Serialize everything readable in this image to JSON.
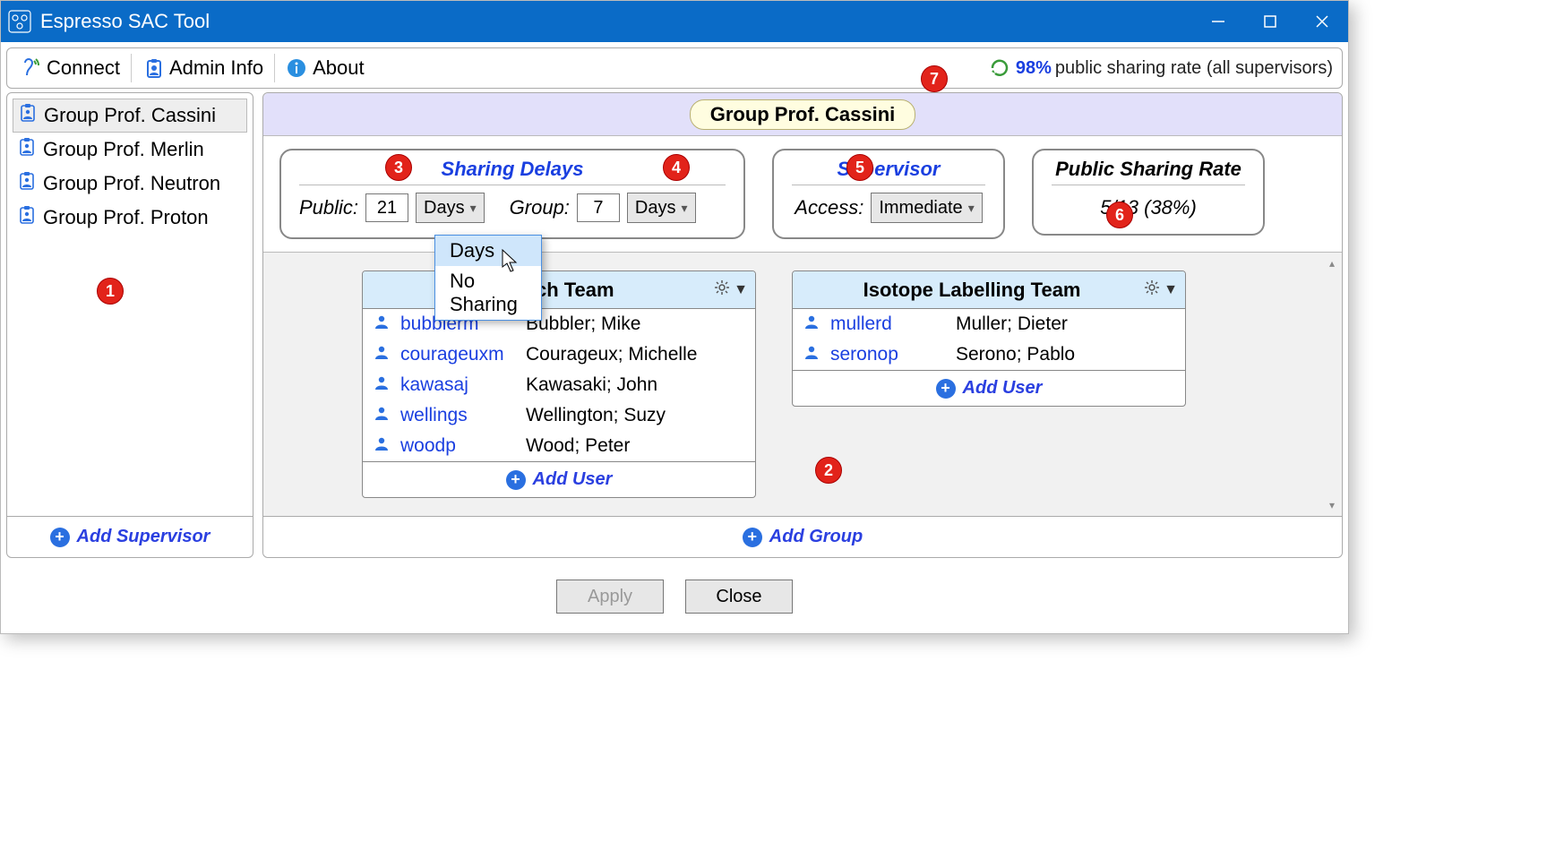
{
  "window": {
    "title": "Espresso SAC Tool"
  },
  "toolbar": {
    "connect": "Connect",
    "admin_info": "Admin Info",
    "about": "About",
    "sharing_rate_pct": "98%",
    "sharing_rate_suffix": "public sharing rate (all supervisors)"
  },
  "sidebar": {
    "items": [
      {
        "label": "Group Prof. Cassini",
        "selected": true
      },
      {
        "label": "Group Prof. Merlin",
        "selected": false
      },
      {
        "label": "Group Prof. Neutron",
        "selected": false
      },
      {
        "label": "Group Prof. Proton",
        "selected": false
      }
    ],
    "add_label": "Add Supervisor"
  },
  "main": {
    "group_name": "Group Prof. Cassini",
    "sharing_delays": {
      "title": "Sharing Delays",
      "public_label": "Public:",
      "public_value": "21",
      "public_unit": "Days",
      "group_label": "Group:",
      "group_value": "7",
      "group_unit": "Days",
      "dropdown_options": [
        "Days",
        "No Sharing"
      ]
    },
    "supervisor": {
      "title": "Supervisor",
      "access_label": "Access:",
      "access_value": "Immediate"
    },
    "public_rate": {
      "title": "Public Sharing Rate",
      "value": "5/13 (38%)"
    },
    "teams": [
      {
        "name": "Research Team",
        "members": [
          {
            "uid": "bubblerm",
            "name": "Bubbler; Mike"
          },
          {
            "uid": "courageuxm",
            "name": "Courageux; Michelle"
          },
          {
            "uid": "kawasaj",
            "name": "Kawasaki; John"
          },
          {
            "uid": "wellings",
            "name": "Wellington; Suzy"
          },
          {
            "uid": "woodp",
            "name": "Wood; Peter"
          }
        ]
      },
      {
        "name": "Isotope Labelling Team",
        "members": [
          {
            "uid": "mullerd",
            "name": "Muller; Dieter"
          },
          {
            "uid": "seronop",
            "name": "Serono; Pablo"
          }
        ]
      }
    ],
    "add_user_label": "Add User",
    "add_group_label": "Add Group"
  },
  "footer": {
    "apply": "Apply",
    "close": "Close"
  },
  "callouts": {
    "c1": "1",
    "c2": "2",
    "c3": "3",
    "c4": "4",
    "c5": "5",
    "c6": "6",
    "c7": "7"
  },
  "colors": {
    "titlebar": "#0a6bc7",
    "accent": "#1a3fe0",
    "callout": "#e2231a",
    "team_head": "#d7ecfb",
    "group_header": "#e2e0fa",
    "chip_bg": "#fffde0"
  }
}
